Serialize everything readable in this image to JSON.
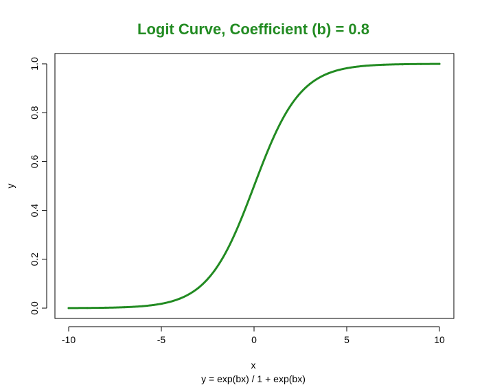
{
  "chart_data": {
    "type": "line",
    "title": "Logit Curve, Coefficient (b) = 0.8",
    "xlabel": "x",
    "ylabel": "y",
    "subtitle": "y = exp(bx) / 1 + exp(bx)",
    "xlim": [
      -10,
      10
    ],
    "ylim": [
      0,
      1
    ],
    "x_ticks": [
      "-10",
      "-5",
      "0",
      "5",
      "10"
    ],
    "y_ticks": [
      "0.0",
      "0.2",
      "0.4",
      "0.6",
      "0.8",
      "1.0"
    ],
    "coefficient_b": 0.8,
    "grid": false,
    "colors": {
      "line": "#228b22",
      "title": "#228b22"
    },
    "series": [
      {
        "x": [
          -10,
          -9,
          -8,
          -7,
          -6,
          -5,
          -4,
          -3,
          -2,
          -1,
          0,
          1,
          2,
          3,
          4,
          5,
          6,
          7,
          8,
          9,
          10
        ],
        "y": [
          0.0003,
          0.0007,
          0.0017,
          0.0037,
          0.0082,
          0.018,
          0.039,
          0.083,
          0.168,
          0.31,
          0.5,
          0.69,
          0.832,
          0.917,
          0.961,
          0.982,
          0.992,
          0.996,
          0.998,
          0.999,
          0.9997
        ]
      }
    ]
  }
}
